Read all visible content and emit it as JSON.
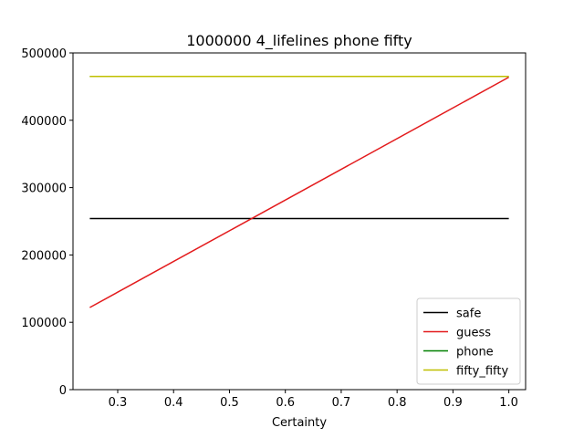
{
  "chart_data": {
    "type": "line",
    "title": "1000000 4_lifelines phone fifty",
    "xlabel": "Certainty",
    "ylabel": "",
    "xlim": [
      0.22,
      1.03
    ],
    "ylim": [
      0,
      500000
    ],
    "xticks": [
      0.3,
      0.4,
      0.5,
      0.6,
      0.7,
      0.8,
      0.9,
      1.0
    ],
    "xtick_labels": [
      "0.3",
      "0.4",
      "0.5",
      "0.6",
      "0.7",
      "0.8",
      "0.9",
      "1.0"
    ],
    "yticks": [
      0,
      100000,
      200000,
      300000,
      400000,
      500000
    ],
    "ytick_labels": [
      "0",
      "100000",
      "200000",
      "300000",
      "400000",
      "500000"
    ],
    "grid": false,
    "legend_position": "lower-right",
    "series": [
      {
        "name": "safe",
        "color": "#000000",
        "x": [
          0.25,
          1.0
        ],
        "y": [
          254000,
          254000
        ]
      },
      {
        "name": "guess",
        "color": "#e31a1c",
        "x": [
          0.25,
          1.0
        ],
        "y": [
          122000,
          464000
        ]
      },
      {
        "name": "phone",
        "color": "#008000",
        "x": [
          0.25,
          1.0
        ],
        "y": [
          465000,
          465000
        ]
      },
      {
        "name": "fifty_fifty",
        "color": "#bfbf00",
        "x": [
          0.25,
          1.0
        ],
        "y": [
          465000,
          465000
        ]
      }
    ]
  }
}
